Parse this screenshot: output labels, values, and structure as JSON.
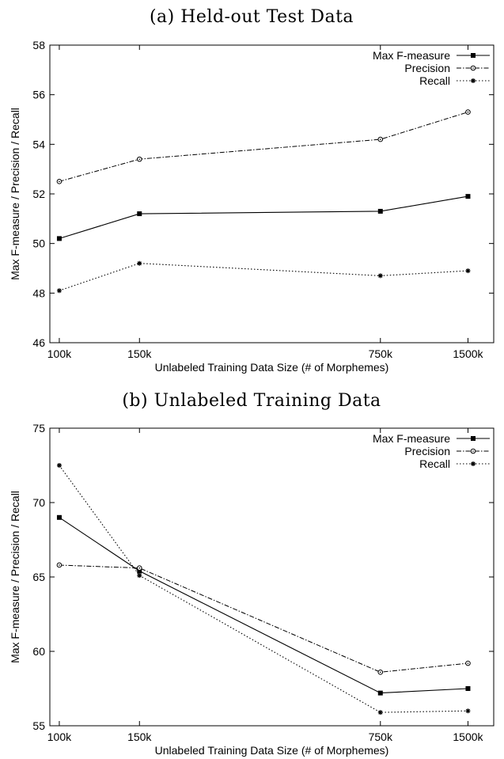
{
  "chart_data": [
    {
      "type": "line",
      "title": "(a) Held-out Test Data",
      "xlabel": "Unlabeled Training Data Size (# of Morphemes)",
      "ylabel": "Max F-measure / Precision / Recall",
      "categories": [
        "100k",
        "150k",
        "750k",
        "1500k"
      ],
      "x_positions": [
        100,
        150,
        750,
        1500
      ],
      "ylim": [
        46,
        58
      ],
      "yticks": [
        46,
        48,
        50,
        52,
        54,
        56,
        58
      ],
      "legend_position": "top-right",
      "series": [
        {
          "name": "Max F-measure",
          "style": "solid",
          "marker": "filled-square",
          "values": [
            50.2,
            51.2,
            51.3,
            51.9
          ]
        },
        {
          "name": "Precision",
          "style": "dash-dot",
          "marker": "open-circle",
          "values": [
            52.5,
            53.4,
            54.2,
            55.3
          ]
        },
        {
          "name": "Recall",
          "style": "dotted",
          "marker": "asterisk",
          "values": [
            48.1,
            49.2,
            48.7,
            48.9
          ]
        }
      ]
    },
    {
      "type": "line",
      "title": "(b) Unlabeled Training Data",
      "xlabel": "Unlabeled Training Data Size (# of Morphemes)",
      "ylabel": "Max F-measure / Precision / Recall",
      "categories": [
        "100k",
        "150k",
        "750k",
        "1500k"
      ],
      "x_positions": [
        100,
        150,
        750,
        1500
      ],
      "ylim": [
        55,
        75
      ],
      "yticks": [
        55,
        60,
        65,
        70,
        75
      ],
      "legend_position": "top-right",
      "series": [
        {
          "name": "Max F-measure",
          "style": "solid",
          "marker": "filled-square",
          "values": [
            69.0,
            65.4,
            57.2,
            57.5
          ]
        },
        {
          "name": "Precision",
          "style": "dash-dot",
          "marker": "open-circle",
          "values": [
            65.8,
            65.6,
            58.6,
            59.2
          ]
        },
        {
          "name": "Recall",
          "style": "dotted",
          "marker": "asterisk",
          "values": [
            72.5,
            65.1,
            55.9,
            56.0
          ]
        }
      ]
    }
  ]
}
